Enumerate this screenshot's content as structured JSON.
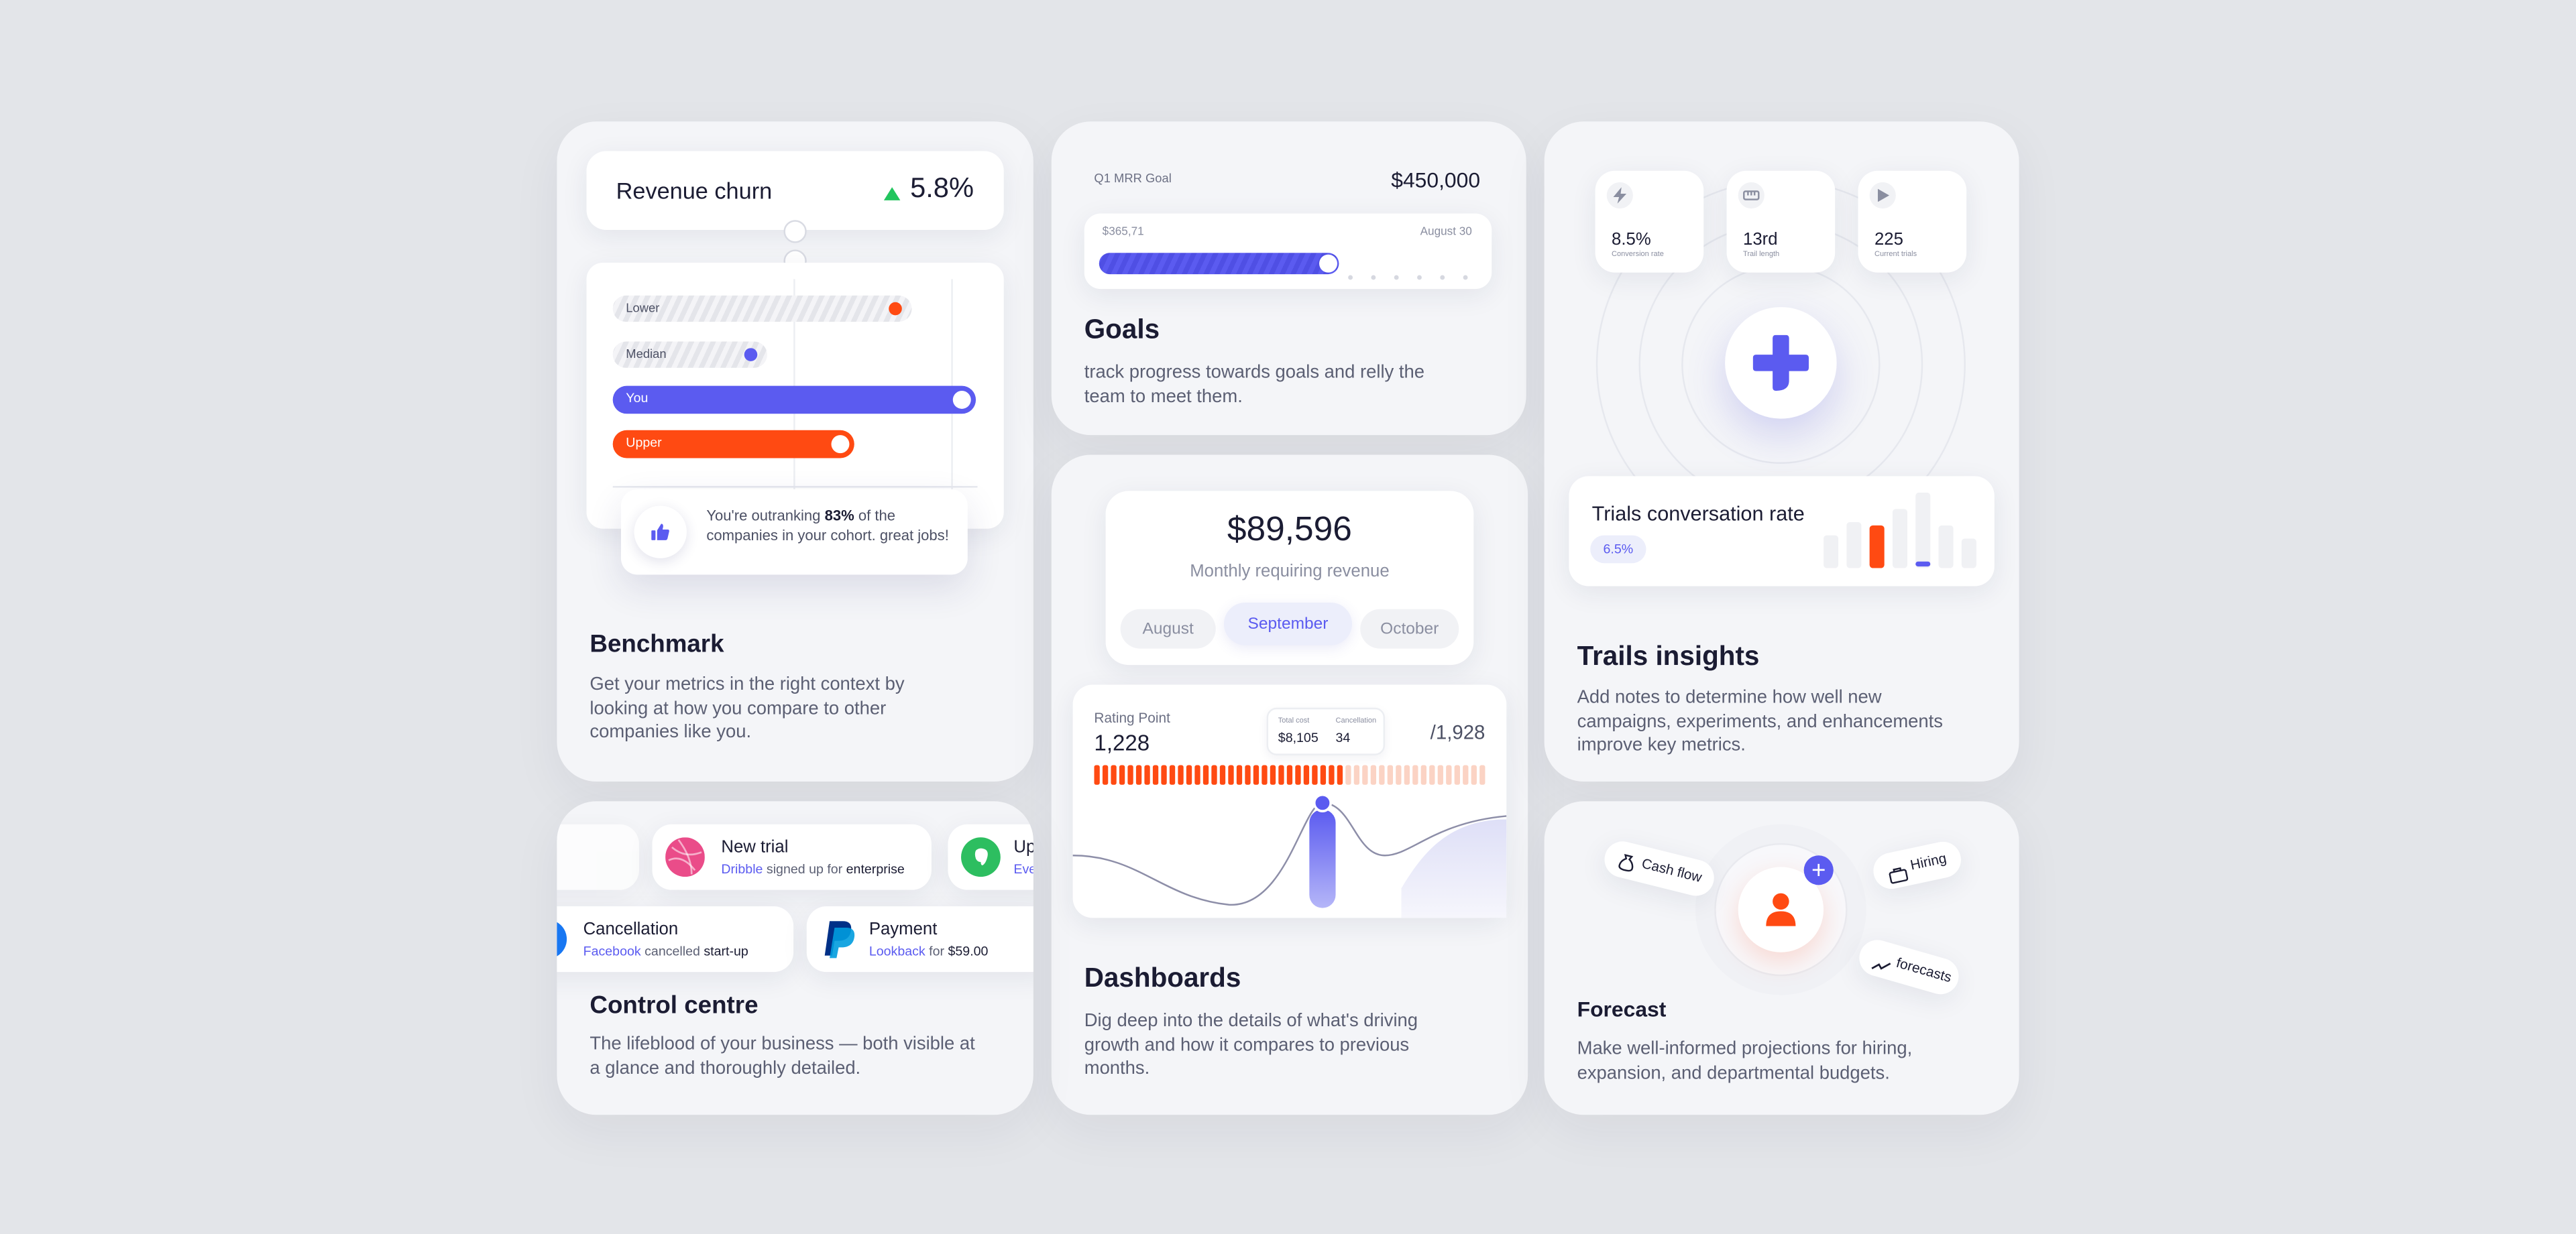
{
  "benchmark": {
    "churn": {
      "label": "Revenue churn",
      "value": "5.8%"
    },
    "bars": [
      {
        "label": "Lower"
      },
      {
        "label": "Median"
      },
      {
        "label": "You"
      },
      {
        "label": "Upper"
      }
    ],
    "toast": {
      "pre": "You're outranking ",
      "pct": "83%",
      "post": " of the companies in your cohort. great jobs!"
    },
    "title": "Benchmark",
    "desc": "Get your metrics in the right context by looking at how you compare to other companies like you."
  },
  "goals": {
    "goal_label": "Q1 MRR Goal",
    "goal_value": "$450,000",
    "progress_start": "$365,71",
    "progress_end": "August 30",
    "title": "Goals",
    "desc": "track progress towards goals and relly the team to meet them."
  },
  "dashboards": {
    "amount": "$89,596",
    "subtitle": "Monthly requiring revenue",
    "months": [
      "August",
      "September",
      "October"
    ],
    "rating_label": "Rating Point",
    "rating_value": "1,228",
    "rating_total": "/1,928",
    "mini": {
      "total_label": "Total cost",
      "total_value": "$8,105",
      "canc_label": "Cancellation",
      "canc_value": "34"
    },
    "title": "Dashboards",
    "desc": "Dig deep into the details of what's driving growth and how it compares to previous months."
  },
  "trials": {
    "stats": [
      {
        "value": "8.5%",
        "label": "Conversion rate"
      },
      {
        "value": "13rd",
        "label": "Trail length"
      },
      {
        "value": "225",
        "label": "Current trials"
      }
    ],
    "rate_title": "Trials conversation rate",
    "rate_badge": "6.5%",
    "title": "Trails insights",
    "desc": "Add notes to determine how well new campaigns, experiments, and enhancements improve key metrics."
  },
  "control": {
    "feed_top": [
      {
        "title": "New trial",
        "who": "Dribble",
        "action": " signed up for ",
        "target": "enterprise"
      },
      {
        "title": "Up",
        "who": "Eve",
        "action": "",
        "target": ""
      }
    ],
    "feed_bottom": [
      {
        "title": "Cancellation",
        "who": "Facebook",
        "action": " cancelled ",
        "target": "start-up"
      },
      {
        "title": "Payment",
        "who": "Lookback",
        "action": " for ",
        "target": "$59.00"
      }
    ],
    "title": "Control centre",
    "desc": "The lifeblood of your business — both visible at a glance and thoroughly detailed."
  },
  "forecast": {
    "chips": [
      "Cash flow",
      "Hiring",
      "forecasts"
    ],
    "title": "Forecast",
    "desc": "Make well-informed projections for hiring, expansion, and departmental budgets."
  },
  "colors": {
    "accent": "#5b5bf0",
    "orange": "#ff4a12",
    "green": "#22c55e"
  }
}
